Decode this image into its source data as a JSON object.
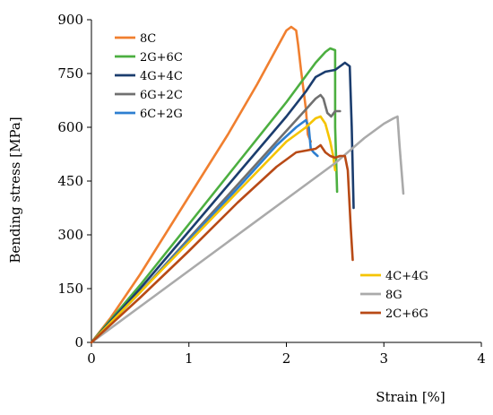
{
  "chart_data": {
    "type": "line",
    "title": "",
    "xlabel": "Strain [%]",
    "ylabel": "Bending stress [MPa]",
    "xlim": [
      0,
      4
    ],
    "ylim": [
      0,
      900
    ],
    "xticks": [
      0,
      1,
      2,
      3,
      4
    ],
    "yticks": [
      0,
      150,
      300,
      450,
      600,
      750,
      900
    ],
    "grid": false,
    "legend_groups": [
      {
        "placement": "top-left",
        "entries": [
          "8C",
          "2G+6C",
          "4G+4C",
          "6G+2C",
          "6C+2G"
        ]
      },
      {
        "placement": "bottom-right",
        "entries": [
          "4C+4G",
          "8G",
          "2C+6G"
        ]
      }
    ],
    "series": [
      {
        "name": "8C",
        "color": "#f07f2f",
        "x": [
          0,
          0.2,
          0.5,
          0.8,
          1.1,
          1.4,
          1.7,
          1.9,
          2.0,
          2.05,
          2.1,
          2.12,
          2.15,
          2.2,
          2.22,
          2.25
        ],
        "y": [
          0,
          70,
          190,
          320,
          450,
          580,
          720,
          820,
          870,
          880,
          870,
          830,
          760,
          650,
          580,
          560
        ]
      },
      {
        "name": "2G+6C",
        "color": "#4caf40",
        "x": [
          0,
          0.5,
          1.0,
          1.5,
          2.0,
          2.3,
          2.4,
          2.45,
          2.5,
          2.5,
          2.52
        ],
        "y": [
          0,
          160,
          330,
          500,
          670,
          780,
          810,
          820,
          815,
          600,
          420
        ]
      },
      {
        "name": "4G+4C",
        "color": "#1b3d6e",
        "x": [
          0,
          0.5,
          1.0,
          1.5,
          2.0,
          2.2,
          2.3,
          2.4,
          2.5,
          2.6,
          2.65,
          2.67,
          2.69
        ],
        "y": [
          0,
          150,
          310,
          470,
          630,
          700,
          740,
          755,
          760,
          780,
          770,
          600,
          375
        ]
      },
      {
        "name": "6G+2C",
        "color": "#707070",
        "x": [
          0,
          0.5,
          1.0,
          1.5,
          1.9,
          2.1,
          2.2,
          2.3,
          2.35,
          2.38,
          2.42,
          2.46,
          2.5,
          2.55
        ],
        "y": [
          0,
          140,
          290,
          440,
          560,
          620,
          650,
          680,
          690,
          680,
          640,
          630,
          645,
          645
        ]
      },
      {
        "name": "6C+2G",
        "color": "#2e7fd0",
        "x": [
          0,
          0.5,
          1.0,
          1.5,
          1.9,
          2.1,
          2.15,
          2.2,
          2.23,
          2.25,
          2.28,
          2.32
        ],
        "y": [
          0,
          140,
          285,
          430,
          550,
          600,
          610,
          620,
          600,
          540,
          530,
          520
        ]
      },
      {
        "name": "4C+4G",
        "color": "#f5c400",
        "x": [
          0,
          0.5,
          1.0,
          1.5,
          2.0,
          2.2,
          2.3,
          2.35,
          2.4,
          2.45,
          2.48,
          2.5
        ],
        "y": [
          0,
          140,
          280,
          420,
          560,
          600,
          625,
          630,
          610,
          560,
          520,
          480
        ]
      },
      {
        "name": "8G",
        "color": "#aaaaaa",
        "x": [
          0,
          0.5,
          1.0,
          1.5,
          2.0,
          2.5,
          2.8,
          3.0,
          3.1,
          3.14,
          3.16,
          3.2
        ],
        "y": [
          0,
          100,
          200,
          300,
          400,
          500,
          570,
          610,
          625,
          630,
          550,
          415
        ]
      },
      {
        "name": "2C+6G",
        "color": "#b84a16",
        "x": [
          0,
          0.5,
          1.0,
          1.5,
          1.9,
          2.1,
          2.2,
          2.3,
          2.35,
          2.4,
          2.45,
          2.5,
          2.55,
          2.6,
          2.63,
          2.66,
          2.68
        ],
        "y": [
          0,
          125,
          255,
          390,
          490,
          530,
          535,
          540,
          550,
          530,
          520,
          515,
          520,
          520,
          480,
          320,
          230
        ]
      }
    ]
  }
}
